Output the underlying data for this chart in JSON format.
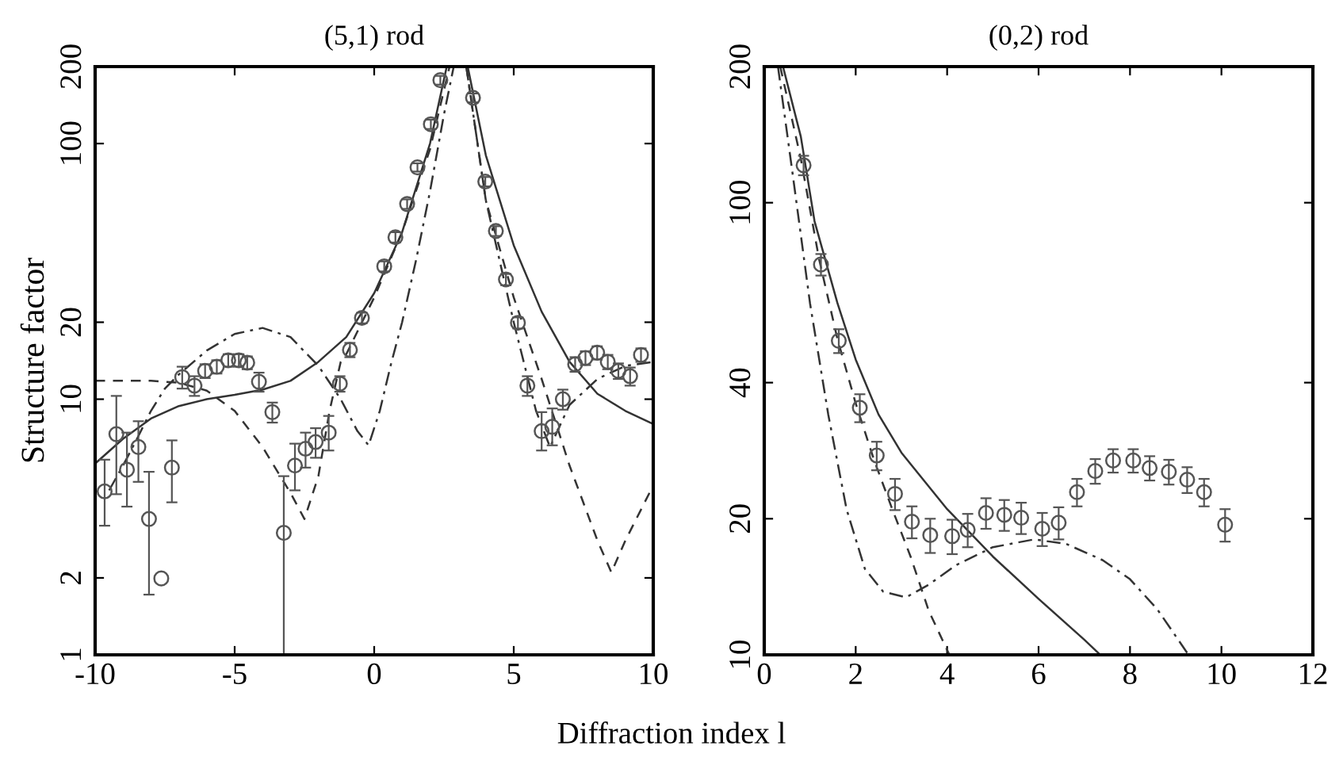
{
  "chart_data": [
    {
      "type": "line",
      "title": "(5,1) rod",
      "xlabel": "Diffraction index l",
      "ylabel": "Structure factor",
      "log": "y",
      "xlim": [
        -10,
        10
      ],
      "ylim": [
        1,
        200
      ],
      "xticks": [
        -10,
        -5,
        0,
        5,
        10
      ],
      "yticks": [
        1,
        2,
        10,
        20,
        100,
        200
      ],
      "series": [
        {
          "line_style": "solid",
          "color": "#333333",
          "x": [
            -10,
            -9,
            -8,
            -7,
            -6,
            -5,
            -4,
            -3,
            -2,
            -1,
            0,
            1,
            2,
            2.6,
            null,
            3.35,
            4,
            5,
            6,
            7,
            8,
            9,
            10
          ],
          "values": [
            5.6,
            7.0,
            8.4,
            9.4,
            10.0,
            10.4,
            10.9,
            11.8,
            14,
            17.5,
            26,
            45,
            100,
            200,
            null,
            200,
            90,
            40,
            22,
            14,
            10.5,
            9,
            8
          ]
        },
        {
          "line_style": "dashed",
          "color": "#333333",
          "x": [
            -10,
            -8,
            -7,
            -6,
            -5,
            -4,
            -3,
            -2.5,
            -2,
            -1.6,
            -1.2,
            -1,
            0,
            1,
            2,
            2.7,
            null,
            3.3,
            4,
            5,
            6,
            7,
            8,
            8.5,
            9,
            10
          ],
          "values": [
            11.8,
            11.8,
            11.6,
            10.8,
            9,
            6.5,
            4.3,
            3.4,
            5,
            9,
            14,
            15,
            25,
            45,
            95,
            200,
            null,
            200,
            60,
            25,
            12,
            5.5,
            2.8,
            2.1,
            2.8,
            4.6
          ]
        },
        {
          "line_style": "dashdot",
          "color": "#333333",
          "x": [
            -9.5,
            -9,
            -8.5,
            -8,
            -7.5,
            -7,
            -6,
            -5,
            -4,
            -3,
            -2,
            -1.2,
            -0.6,
            -0.2,
            0.2,
            0.6,
            1,
            1.5,
            2,
            2.5,
            2.85,
            null,
            3.3,
            4,
            5,
            5.8,
            6.3,
            7,
            8,
            9,
            10
          ],
          "values": [
            4.4,
            5.5,
            7,
            9,
            11,
            12.5,
            15.5,
            18,
            19,
            17.5,
            13.5,
            10,
            7.5,
            6.6,
            9,
            13.7,
            20,
            35,
            65,
            130,
            200,
            null,
            200,
            60,
            20,
            9,
            6.5,
            9.5,
            12,
            13.5,
            14
          ]
        },
        {
          "type": "scatter",
          "marker": "circle",
          "color": "#555555",
          "x": [
            -9.66,
            -9.24,
            -8.86,
            -8.45,
            -8.07,
            -7.63,
            -7.25,
            -6.88,
            -6.44,
            -6.06,
            -5.64,
            -5.23,
            -4.85,
            -4.55,
            -4.13,
            -3.65,
            -3.24,
            -2.84,
            -2.46,
            -2.1,
            -1.63,
            -1.23,
            -0.87,
            -0.44,
            0.36,
            0.76,
            1.18,
            1.55,
            2.03,
            2.37,
            3.54,
            3.98,
            4.36,
            4.72,
            5.15,
            5.49,
            6.0,
            6.38,
            6.76,
            7.2,
            7.57,
            7.99,
            8.37,
            8.75,
            9.17,
            9.56
          ],
          "values": [
            4.36,
            7.3,
            5.3,
            6.5,
            3.4,
            1.99,
            5.4,
            12.2,
            11.3,
            12.9,
            13.4,
            14.2,
            14.2,
            13.9,
            11.7,
            8.9,
            3.0,
            5.5,
            6.4,
            6.8,
            7.4,
            11.5,
            15.6,
            20.8,
            33.1,
            43,
            58,
            80.7,
            119,
            177,
            151,
            71,
            45.5,
            29.4,
            19.9,
            11.3,
            7.5,
            7.8,
            10.0,
            13.7,
            14.5,
            15.2,
            14.0,
            12.9,
            12.3,
            14.9
          ],
          "errors": [
            [
              3.2,
              5.8
            ],
            [
              4.25,
              10.3
            ],
            [
              3.8,
              7.4
            ],
            [
              4.75,
              8.2
            ],
            [
              1.72,
              5.2
            ],
            null,
            [
              3.95,
              6.9
            ],
            1.2,
            1.0,
            0.8,
            0.8,
            0.8,
            0.8,
            0.8,
            1.0,
            0.8,
            [
              1,
              5.0
            ],
            [
              4.4,
              6.7
            ],
            1.0,
            0.9,
            [
              6.3,
              8.6
            ],
            0.8,
            1,
            1,
            1.5,
            2,
            2.5,
            3,
            5,
            7,
            6,
            3,
            2,
            1.5,
            1,
            1,
            [
              6.3,
              8.9
            ],
            [
              6.6,
              9.2
            ],
            0.9,
            0.9,
            0.9,
            0.9,
            0.9,
            0.9,
            1.0,
            0.9
          ]
        }
      ]
    },
    {
      "type": "line",
      "title": "(0,2) rod",
      "log": "y",
      "xlim": [
        0,
        12
      ],
      "ylim": [
        10,
        200
      ],
      "xticks": [
        0,
        2,
        4,
        6,
        8,
        10,
        12
      ],
      "yticks": [
        10,
        20,
        40,
        100,
        200
      ],
      "series": [
        {
          "line_style": "solid",
          "color": "#333333",
          "x": [
            0.41,
            0.8,
            1.1,
            1.6,
            2,
            2.5,
            3,
            4,
            5,
            6,
            7,
            7.35
          ],
          "values": [
            200,
            140,
            91,
            60,
            45,
            34,
            28,
            21,
            16.5,
            13.3,
            10.8,
            10
          ]
        },
        {
          "line_style": "dashed",
          "color": "#333333",
          "x": [
            0.35,
            0.8,
            1.2,
            1.6,
            2,
            2.4,
            2.8,
            3.2,
            3.6,
            4.05
          ],
          "values": [
            200,
            125,
            75,
            50,
            36,
            27,
            21,
            16.5,
            12.5,
            10
          ]
        },
        {
          "line_style": "dashdot",
          "color": "#333333",
          "x": [
            0.3,
            0.6,
            1,
            1.4,
            1.8,
            2.2,
            2.6,
            3.1,
            3.6,
            4.2,
            5,
            5.9,
            6.6,
            7.4,
            8,
            8.6,
            9.28
          ],
          "values": [
            200,
            120,
            60,
            34,
            21,
            15.5,
            13.8,
            13.4,
            14.3,
            15.8,
            17.3,
            18,
            17.6,
            16.2,
            14.7,
            12.6,
            10
          ]
        },
        {
          "type": "scatter",
          "marker": "circle",
          "color": "#555555",
          "x": [
            0.86,
            1.24,
            1.63,
            2.09,
            2.46,
            2.86,
            3.23,
            3.63,
            4.11,
            4.45,
            4.85,
            5.25,
            5.62,
            6.08,
            6.44,
            6.84,
            7.24,
            7.63,
            8.07,
            8.43,
            8.85,
            9.25,
            9.62,
            10.08
          ],
          "values": [
            121,
            73,
            49.5,
            35.2,
            27.6,
            22.7,
            19.7,
            18.4,
            18.3,
            18.9,
            20.6,
            20.4,
            20.1,
            19.0,
            19.6,
            22.9,
            25.5,
            26.9,
            26.9,
            25.9,
            25.4,
            24.4,
            22.9,
            19.4
          ],
          "errors": [
            6,
            4,
            3,
            2.5,
            2,
            1.8,
            1.6,
            1.6,
            1.6,
            1.6,
            1.6,
            1.6,
            1.6,
            1.6,
            1.6,
            1.6,
            1.6,
            1.6,
            1.6,
            1.6,
            1.6,
            1.6,
            1.6,
            1.6
          ]
        }
      ]
    }
  ]
}
